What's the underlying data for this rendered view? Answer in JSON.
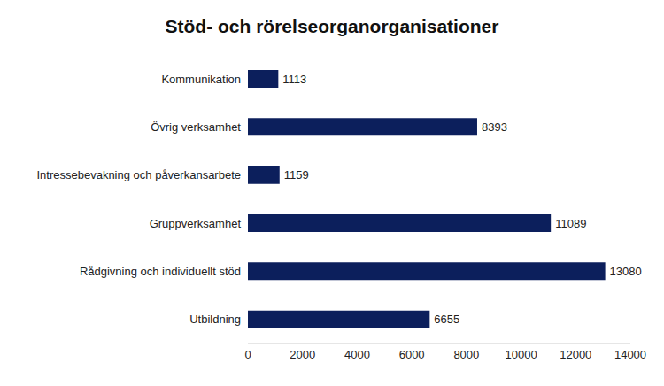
{
  "chart_data": {
    "type": "bar",
    "title": "Stöd- och rörelseorganorganisationer",
    "orientation": "horizontal",
    "categories": [
      "Kommunikation",
      "Övrig verksamhet",
      "Intressebevakning och påverkansarbete",
      "Gruppverksamhet",
      "Rådgivning och individuellt stöd",
      "Utbildning"
    ],
    "values": [
      1113,
      8393,
      1159,
      11089,
      13080,
      6655
    ],
    "color": "#0c1f5c",
    "xlim": [
      0,
      14000
    ],
    "xticks": [
      0,
      2000,
      4000,
      6000,
      8000,
      10000,
      12000,
      14000
    ],
    "grid": false,
    "data_labels": true
  }
}
